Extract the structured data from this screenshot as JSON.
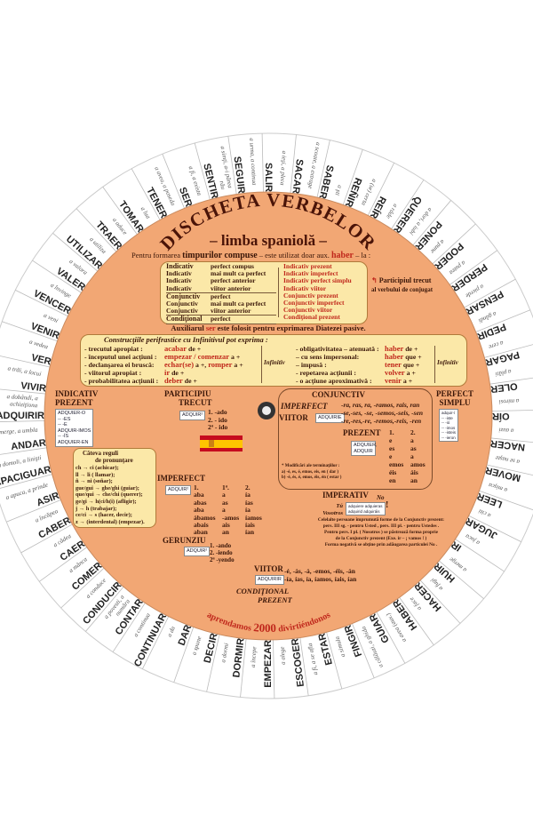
{
  "disc": {
    "title": "DISCHETA VERBELOR",
    "subtitle": "– limba spaniolă –",
    "colors": {
      "disc": "#f2a774",
      "box": "#fbe8a8",
      "accent_red": "#c0281c",
      "text": "#3a1608"
    },
    "center_hole_icon": "ring-hole"
  },
  "verbs": [
    {
      "v": "SALIR",
      "t": "a ieşi, a pleca"
    },
    {
      "v": "SACAR",
      "t": "a scoate, a extrage"
    },
    {
      "v": "SABER",
      "t": "a şti"
    },
    {
      "v": "REÑIR",
      "t": "a (se) certa"
    },
    {
      "v": "REÍR",
      "t": "a râde"
    },
    {
      "v": "QUERER",
      "t": "a dori, a iubi"
    },
    {
      "v": "PONER",
      "t": "a pune"
    },
    {
      "v": "PODER",
      "t": "a putea"
    },
    {
      "v": "PERDER",
      "t": "a pierde"
    },
    {
      "v": "PENSAR",
      "t": "a gândi"
    },
    {
      "v": "PEDIR",
      "t": "a cere"
    },
    {
      "v": "PAGAR",
      "t": "a plăti"
    },
    {
      "v": "OLER",
      "t": "a mirosi"
    },
    {
      "v": "OÍR",
      "t": "a auzi"
    },
    {
      "v": "NACER",
      "t": "a se naşte"
    },
    {
      "v": "MOVER",
      "t": "a mişca"
    },
    {
      "v": "LEER",
      "t": "a citi"
    },
    {
      "v": "JUGAR",
      "t": "a juca"
    },
    {
      "v": "IR",
      "t": "a merge"
    },
    {
      "v": "HUIR",
      "t": "a fugi"
    },
    {
      "v": "HACER",
      "t": "a face"
    },
    {
      "v": "HABER",
      "t": "a avea (aux.)"
    },
    {
      "v": "GUIAR",
      "t": "a călăuzi, a ghida"
    },
    {
      "v": "FINGIR",
      "t": "a simula"
    },
    {
      "v": "ESTAR",
      "t": "a fi, a se afla"
    },
    {
      "v": "ESCOGER",
      "t": "a alege"
    },
    {
      "v": "EMPEZAR",
      "t": "a începe"
    },
    {
      "v": "DORMIR",
      "t": "a dormi"
    },
    {
      "v": "DECIR",
      "t": "a spune"
    },
    {
      "v": "DAR",
      "t": "a da"
    },
    {
      "v": "CONTINUAR",
      "t": "a continua"
    },
    {
      "v": "CONTAR",
      "t": "a povesti, a număra"
    },
    {
      "v": "CONDUCIR",
      "t": "a conduce"
    },
    {
      "v": "COMER",
      "t": "a mânca"
    },
    {
      "v": "CAER",
      "t": "a cădea"
    },
    {
      "v": "CABER",
      "t": "a încăpea"
    },
    {
      "v": "ASIR",
      "t": "a apuca, a prinde"
    },
    {
      "v": "APACIGUAR",
      "t": "a domoli, a linişti"
    },
    {
      "v": "ANDAR",
      "t": "a merge, a umbla"
    },
    {
      "v": "ADQUIRIR",
      "t": "a dobândi, a achiziţiona"
    },
    {
      "v": "VIVIR",
      "t": "a trăi, a locui"
    },
    {
      "v": "VER",
      "t": "a vedea"
    },
    {
      "v": "VENIR",
      "t": "a veni"
    },
    {
      "v": "VENCER",
      "t": "a învinge"
    },
    {
      "v": "VALER",
      "t": "a valora"
    },
    {
      "v": "UTILIZAR",
      "t": "a utiliza"
    },
    {
      "v": "TRAER",
      "t": "a aduce"
    },
    {
      "v": "TOMAR",
      "t": "a lua"
    },
    {
      "v": "TENER",
      "t": "a avea, a poseda"
    },
    {
      "v": "SER",
      "t": "a fi, a exista"
    },
    {
      "v": "SENTIR",
      "t": "a simţi, a-i părea rău"
    },
    {
      "v": "SEGUIR",
      "t": "a urma, a continua"
    }
  ],
  "compound": {
    "intro_a": "Pentru formarea ",
    "intro_b": "timpurilor compuse",
    "intro_c": " – este utilizat doar aux. ",
    "intro_d": "haber",
    "intro_e": " – la :",
    "left": [
      {
        "mood": "Indicativ",
        "tenses": [
          "perfect compus",
          "mai mult ca perfect",
          "perfect anterior",
          "viitor anterior"
        ]
      },
      {
        "mood": "Conjunctiv",
        "tenses": [
          "perfect",
          "mai mult ca perfect",
          "viitor anterior"
        ]
      },
      {
        "mood": "Condiţional",
        "tenses": [
          "perfect"
        ]
      }
    ],
    "right": [
      "Indicativ prezent",
      "Indicativ imperfect",
      "Indicativ perfect simplu",
      "Indicativ viitor",
      "Conjunctiv prezent",
      "Conjunctiv imperfect",
      "Conjunctiv viitor",
      "Condiţional prezent"
    ],
    "plus_participle_a": "Participiul trecut",
    "plus_participle_b": "al verbului de conjugat",
    "passive_a": "Auxiliarul ",
    "passive_b": "ser",
    "passive_c": " este folosit pentru exprimarea Diatezei pasive."
  },
  "periphrastic": {
    "title": "Construcţiile perifrastice cu Infinitivul pot exprima :",
    "infinitiv": "Infinitiv",
    "left": [
      {
        "l": "- trecutul apropiat :",
        "v": "acabar",
        "p": " de +"
      },
      {
        "l": "- începutul unei acţiuni :",
        "v": "empezar / comenzar",
        "p": " a +"
      },
      {
        "l": "- declanşarea ei bruscă:",
        "v": "echar(se)",
        "p": " a +, ",
        "v2": "romper",
        "p2": " a +"
      },
      {
        "l": "- viitorul apropiat :",
        "v": "ir",
        "p": " de +"
      },
      {
        "l": "- probabilitatea acţiunii :",
        "v": "deber",
        "p": " de +"
      }
    ],
    "right": [
      {
        "l": "- obligativitatea – atenuată :",
        "v": "haber",
        "p": " de +"
      },
      {
        "l": "– cu sens impersonal:",
        "v": "haber",
        "p": " que +"
      },
      {
        "l": "– impusă :",
        "v": "tener",
        "p": " que +"
      },
      {
        "l": "- repetarea acţiunii :",
        "v": "volver",
        "p": " a +"
      },
      {
        "l": "- o acţiune aproximativă :",
        "v": "venir",
        "p": " a +"
      }
    ]
  },
  "indicativ_prezent": {
    "title1": "INDICATIV",
    "title2": "PREZENT",
    "rows": [
      "ADQUIER-O",
      "-- -ES",
      "-- -E",
      "ADQUIR-IMOS",
      "-- -ÍS",
      "ADQUIER-EN"
    ]
  },
  "participiu": {
    "title1": "PARTICIPIU",
    "title2": "TRECUT",
    "chip": "ADQUIR²",
    "endings": [
      "1. -ado",
      "2. - ido",
      "2ª - ido"
    ]
  },
  "pronunciation": {
    "title1": "Câteva reguli",
    "title2": "de pronunţare",
    "rows": [
      "ch  →  ci  (achicar);",
      "ll  →  li  ( llamar);",
      "ñ  →  ni  (soñar);",
      "gue/gui → ghe/ghi (guiar);",
      "que/qui → che/chi (querer);",
      "ge/gi → h(ci/h(i) (afligir);",
      "j  →  h  (trabajar);",
      "ce/ci →  s  (hacer, decir);",
      "z  →  (interdental) (empezar)."
    ]
  },
  "conjunctiv": {
    "title": "CONJUNCTIV",
    "imperfect": "IMPERFECT",
    "viitor": "VIITOR",
    "chip": "ADQUIRIE",
    "rows": [
      "-ra, ras, ra, -ramos, rais, ran",
      "-se,-ses, -se, -semos,-seis, -sen",
      "-re,-res,-re, -remos,-reis, -ren"
    ],
    "prezent": "PREZENT",
    "chip2": "ADQUIER, ADQUIR",
    "c1": [
      "1.",
      "e",
      "es",
      "e",
      "emos",
      "éis",
      "en"
    ],
    "c2": [
      "2.",
      "a",
      "as",
      "a",
      "amos",
      "áis",
      "an"
    ],
    "note": [
      "* Modificări ale terminaţiilor :",
      "a) -é, es, é, emos, eis, en ( dar )",
      "b) -é, és, é, emos, éis, én ( estar )"
    ]
  },
  "perfect_simplu": {
    "title1": "PERFECT",
    "title2": "SIMPLU",
    "rows": [
      "adquir-í",
      "-- -iste",
      "-- -ió",
      "-- -imos",
      "-- -isteis",
      "-- -ieron"
    ]
  },
  "imperfect": {
    "title": "IMPERFECT",
    "chip": "ADQUIR²",
    "c1": [
      "1.",
      "aba",
      "abas",
      "aba",
      "ábamos",
      "abais",
      "aban"
    ],
    "c2": [
      "1ª.",
      "a",
      "as",
      "a",
      "-amos",
      "ais",
      "an"
    ],
    "c3": [
      "2.",
      "ía",
      "ías",
      "ía",
      "íamos",
      "íais",
      "ían"
    ]
  },
  "gerunziu": {
    "title": "GERUNZIU",
    "chip": "ADQUIR²",
    "endings": [
      "1. -ando",
      "2. -iendo",
      "2ª -yendo"
    ]
  },
  "viitor": {
    "title": "VIITOR",
    "chip": "ADQUIRIR",
    "rows": [
      "-é, -ás, -á, -emos, -éis, -án",
      "-ía, ías, ía, íamos, íais, ían"
    ],
    "cond1": "CONDIŢIONAL",
    "cond2": "PREZENT"
  },
  "imperativ": {
    "title": "IMPERATIV",
    "no": "No",
    "tu": "Tú",
    "vos": "Vosotros",
    "chip1": "adquiere adquieras",
    "chip2": "adquirid adquiráis",
    "text": [
      "Celelalte persoane împrumută forme de la Conjunctiv prezent:",
      "pers. III sg. - pentru Usted , pers. III pl. - pentru Ustedes .",
      "Pentru pers. I pl. ( Nosotros ) se păstrează forma proprie",
      "de la Conjunctiv prezent (Exe. ir – ¡ vamos ! )",
      "Forma negativă se obţine prin adăugarea particulei No ."
    ]
  },
  "motto": {
    "a": "aprendamos",
    "n": "2000",
    "b": "divirtiéndonos"
  }
}
